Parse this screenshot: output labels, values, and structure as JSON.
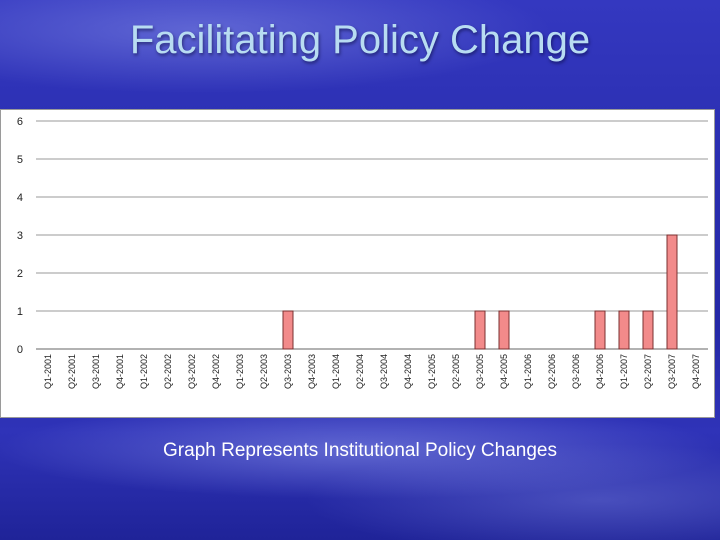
{
  "slide": {
    "title": "Facilitating Policy Change",
    "caption": "Graph  Represents Institutional Policy Changes"
  },
  "colors": {
    "bar_fill": "#f28a8a",
    "bar_stroke": "#7a3030",
    "title_text": "#b8dcf2"
  },
  "chart_data": {
    "type": "bar",
    "categories": [
      "Q1-2001",
      "Q2-2001",
      "Q3-2001",
      "Q4-2001",
      "Q1-2002",
      "Q2-2002",
      "Q3-2002",
      "Q4-2002",
      "Q1-2003",
      "Q2-2003",
      "Q3-2003",
      "Q4-2003",
      "Q1-2004",
      "Q2-2004",
      "Q3-2004",
      "Q4-2004",
      "Q1-2005",
      "Q2-2005",
      "Q3-2005",
      "Q4-2005",
      "Q1-2006",
      "Q2-2006",
      "Q3-2006",
      "Q4-2006",
      "Q1-2007",
      "Q2-2007",
      "Q3-2007",
      "Q4-2007"
    ],
    "values": [
      0,
      0,
      0,
      0,
      0,
      0,
      0,
      0,
      0,
      0,
      1,
      0,
      0,
      0,
      0,
      0,
      0,
      0,
      1,
      1,
      0,
      0,
      0,
      1,
      1,
      1,
      3,
      0
    ],
    "yticks": [
      0,
      1,
      2,
      3,
      4,
      5,
      6
    ],
    "ylim": [
      0,
      6
    ],
    "grid": true,
    "legend": "none"
  }
}
